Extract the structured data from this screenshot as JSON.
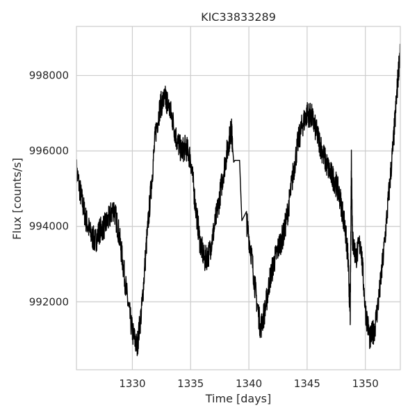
{
  "chart_data": {
    "type": "line",
    "title": "KIC33833289",
    "xlabel": "Time [days]",
    "ylabel": "Flux [counts/s]",
    "xlim": [
      1325.2,
      1353.0
    ],
    "ylim": [
      990200,
      999300
    ],
    "xticks": [
      1330,
      1335,
      1340,
      1345,
      1350
    ],
    "xtick_labels": [
      "1330",
      "1335",
      "1340",
      "1345",
      "1350"
    ],
    "yticks": [
      992000,
      994000,
      996000,
      998000
    ],
    "ytick_labels": [
      "992000",
      "994000",
      "996000",
      "998000"
    ],
    "grid": true,
    "line_color": "#000000",
    "series": [
      {
        "name": "flux",
        "x": [
          1325.2,
          1325.6,
          1326.0,
          1326.4,
          1326.8,
          1327.2,
          1327.6,
          1328.0,
          1328.4,
          1328.8,
          1329.2,
          1329.6,
          1330.0,
          1330.4,
          1330.8,
          1331.2,
          1331.6,
          1332.0,
          1332.4,
          1332.8,
          1333.0,
          1333.4,
          1333.8,
          1334.2,
          1334.6,
          1335.0,
          1335.4,
          1335.8,
          1336.2,
          1336.6,
          1337.0,
          1337.4,
          1337.8,
          1338.2,
          1338.5,
          1338.6,
          1338.7,
          1338.8,
          1339.2,
          1339.4,
          1339.8,
          1340.2,
          1340.6,
          1341.0,
          1341.4,
          1341.8,
          1342.2,
          1342.6,
          1343.0,
          1343.4,
          1343.8,
          1344.2,
          1344.6,
          1345.0,
          1345.4,
          1345.8,
          1346.2,
          1346.6,
          1347.0,
          1347.4,
          1347.8,
          1348.2,
          1348.5,
          1348.7,
          1348.8,
          1348.9,
          1349.2,
          1349.6,
          1350.0,
          1350.4,
          1350.8,
          1351.2,
          1351.6,
          1352.0,
          1352.4,
          1352.7,
          1353.0
        ],
        "y": [
          995500,
          994800,
          994200,
          993800,
          993600,
          993900,
          994000,
          994200,
          994500,
          993900,
          993000,
          992000,
          991200,
          990800,
          991800,
          993500,
          995000,
          996500,
          997200,
          997400,
          997300,
          996900,
          996300,
          996000,
          996100,
          995800,
          994600,
          993600,
          993100,
          993300,
          993900,
          994600,
          995400,
          996100,
          996600,
          996100,
          995700,
          995750,
          995750,
          994150,
          994150,
          993300,
          992200,
          991300,
          991800,
          992600,
          993100,
          993500,
          993800,
          994500,
          995400,
          996200,
          996700,
          997000,
          996900,
          996500,
          996100,
          995700,
          995400,
          995200,
          994800,
          994100,
          993200,
          991600,
          995800,
          993600,
          993200,
          993600,
          991800,
          991000,
          991300,
          992200,
          993400,
          994800,
          996200,
          997500,
          998800
        ]
      }
    ]
  }
}
